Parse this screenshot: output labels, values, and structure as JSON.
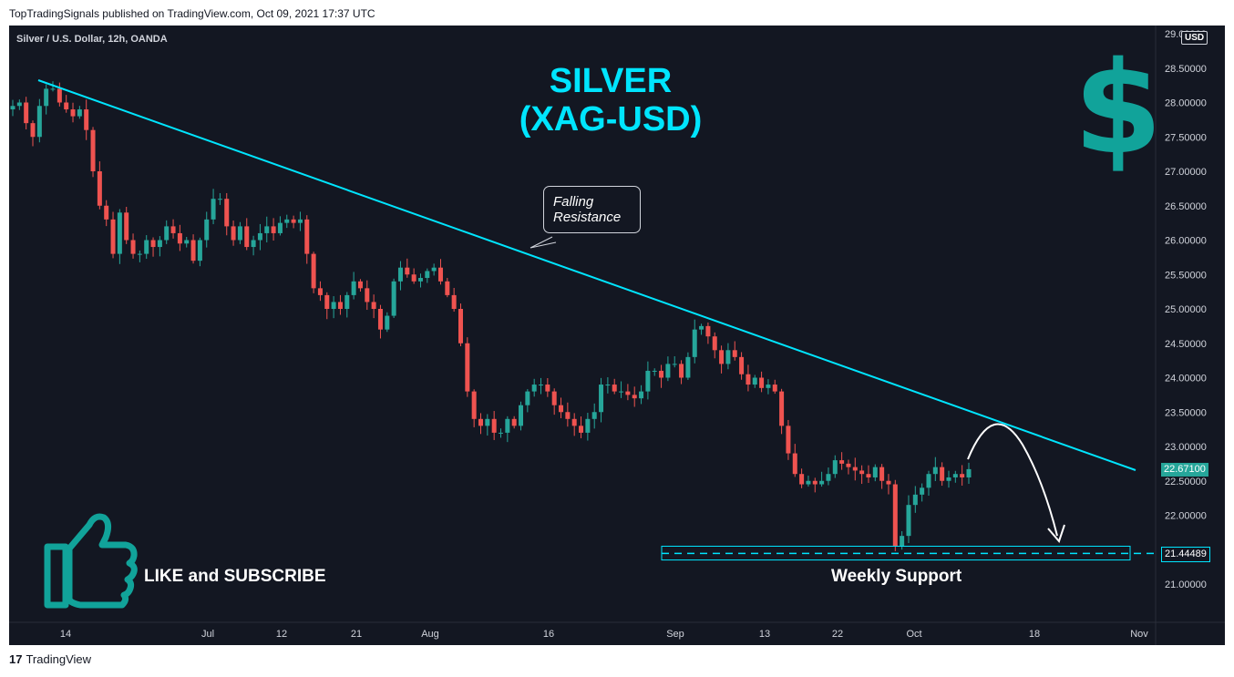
{
  "publish_line": "TopTradingSignals published on TradingView.com, Oct 09, 2021 17:37 UTC",
  "chart_header": "Silver / U.S. Dollar, 12h, OANDA",
  "currency_badge": "USD",
  "title_line1": "SILVER",
  "title_line2": "(XAG-USD)",
  "dollar_glyph": "$",
  "callout_line1": "Falling",
  "callout_line2": "Resistance",
  "like_text": "LIKE and SUBSCRIBE",
  "support_label": "Weekly Support",
  "last_price_label": "22.67100",
  "support_price_label": "21.44489",
  "footer_brand": "TradingView",
  "footer_logo": "17",
  "colors": {
    "up": "#26a69a",
    "down": "#ef5350",
    "resistance": "#00e5ff",
    "background": "#131722"
  },
  "chart_data": {
    "type": "candlestick",
    "title": "Silver / U.S. Dollar, 12h, OANDA",
    "ylim": [
      20.6,
      29.0
    ],
    "y_ticks": [
      "29.00000",
      "28.50000",
      "28.00000",
      "27.50000",
      "27.00000",
      "26.50000",
      "26.00000",
      "25.50000",
      "25.00000",
      "24.50000",
      "24.00000",
      "23.50000",
      "23.00000",
      "22.50000",
      "22.00000",
      "21.50000",
      "21.00000"
    ],
    "x_ticks": [
      "14",
      "Jul",
      "12",
      "21",
      "Aug",
      "16",
      "Sep",
      "13",
      "22",
      "Oct",
      "18",
      "Nov"
    ],
    "ohlc_close": [
      27.95,
      28.0,
      27.7,
      27.5,
      27.95,
      28.2,
      28.2,
      28.0,
      27.9,
      27.8,
      27.9,
      27.6,
      27.0,
      26.5,
      26.3,
      25.8,
      26.4,
      26.0,
      25.8,
      25.8,
      26.0,
      25.9,
      26.0,
      26.2,
      26.1,
      25.95,
      26.0,
      25.7,
      26.0,
      26.3,
      26.6,
      26.6,
      26.2,
      26.0,
      26.2,
      25.9,
      26.0,
      26.1,
      26.2,
      26.1,
      26.25,
      26.3,
      26.25,
      26.3,
      25.8,
      25.3,
      25.2,
      25.0,
      25.1,
      25.0,
      25.2,
      25.4,
      25.3,
      25.1,
      25.0,
      24.7,
      24.9,
      25.4,
      25.6,
      25.5,
      25.4,
      25.45,
      25.55,
      25.6,
      25.4,
      25.2,
      25.0,
      24.5,
      23.8,
      23.4,
      23.3,
      23.4,
      23.2,
      23.2,
      23.4,
      23.3,
      23.6,
      23.8,
      23.9,
      23.9,
      23.8,
      23.6,
      23.5,
      23.4,
      23.3,
      23.2,
      23.4,
      23.5,
      23.9,
      23.9,
      23.8,
      23.8,
      23.75,
      23.7,
      23.8,
      24.1,
      24.1,
      24.0,
      24.2,
      24.2,
      24.0,
      24.3,
      24.7,
      24.75,
      24.6,
      24.4,
      24.2,
      24.4,
      24.3,
      24.05,
      23.9,
      24.0,
      23.85,
      23.9,
      23.8,
      23.3,
      22.9,
      22.6,
      22.45,
      22.5,
      22.45,
      22.5,
      22.6,
      22.8,
      22.75,
      22.7,
      22.65,
      22.6,
      22.55,
      22.7,
      22.5,
      22.45,
      21.55,
      21.7,
      22.15,
      22.3,
      22.4,
      22.6,
      22.7,
      22.5,
      22.55,
      22.6,
      22.55,
      22.67
    ],
    "resistance_line": {
      "start": [
        28.35,
        "Jun 09"
      ],
      "end": [
        22.65,
        "Nov 01"
      ]
    },
    "support_zone": [
      21.35,
      21.55
    ],
    "support_level": 21.44489,
    "last_price": 22.671
  }
}
